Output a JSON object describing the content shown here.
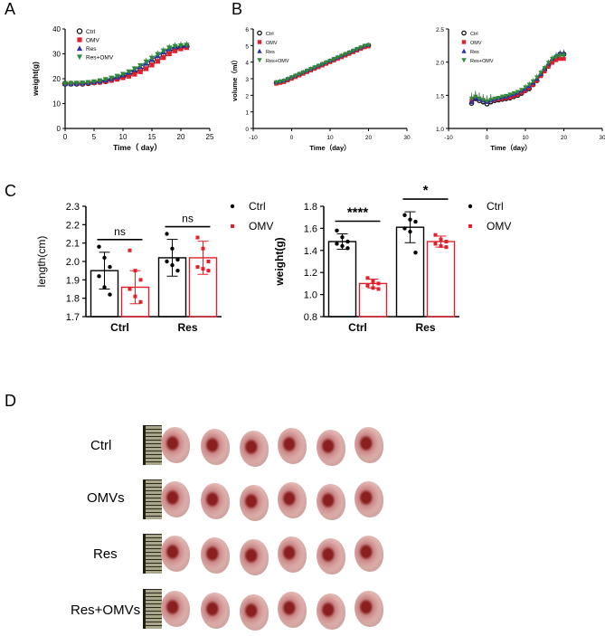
{
  "panels": {
    "A": "A",
    "B": "B",
    "C": "C",
    "D": "D"
  },
  "chart_data": [
    {
      "panel": "A",
      "type": "line",
      "xlabel": "Time（ day）",
      "ylabel": "weight(g)",
      "xlim": [
        0,
        25
      ],
      "ylim": [
        0,
        40
      ],
      "xticks": [
        "0",
        "5",
        "10",
        "15",
        "20",
        "25"
      ],
      "yticks": [
        "0",
        "10",
        "20",
        "30",
        "40"
      ],
      "legend_position": "top-left",
      "colors": {
        "Ctrl": "#000000",
        "OMV": "#e0202a",
        "Res": "#2a2fa8",
        "Res+OMV": "#2f8a3c"
      },
      "x": [
        0,
        1,
        2,
        3,
        4,
        5,
        6,
        7,
        8,
        9,
        10,
        11,
        12,
        13,
        14,
        15,
        16,
        17,
        18,
        19,
        20,
        21
      ],
      "series": [
        {
          "name": "Ctrl",
          "marker": "circle-open",
          "values": [
            18,
            18,
            18,
            18,
            18.2,
            18.5,
            18.7,
            19,
            19.5,
            20,
            20.8,
            21.5,
            22.5,
            23.5,
            25,
            26.5,
            28,
            29.5,
            31,
            32,
            32.5,
            33
          ]
        },
        {
          "name": "OMV",
          "marker": "square",
          "values": [
            18,
            18,
            18,
            18,
            18.2,
            18.4,
            18.6,
            18.9,
            19.3,
            19.8,
            20.4,
            21,
            21.8,
            22.8,
            24,
            25.5,
            27,
            28.5,
            30,
            31.2,
            32,
            32.5
          ]
        },
        {
          "name": "Res",
          "marker": "triangle-up",
          "values": [
            18,
            18,
            18.1,
            18.2,
            18.4,
            18.7,
            19,
            19.4,
            20,
            20.7,
            21.5,
            22.5,
            23.6,
            24.8,
            26.2,
            27.7,
            29.2,
            30.7,
            32,
            32.8,
            33.2,
            33.4
          ]
        },
        {
          "name": "Res+OMV",
          "marker": "triangle-down",
          "values": [
            18,
            18.1,
            18.2,
            18.3,
            18.5,
            18.8,
            19.2,
            19.7,
            20.3,
            21,
            21.8,
            22.8,
            24,
            25.3,
            26.8,
            28.3,
            29.8,
            31.2,
            32.4,
            33,
            33.3,
            33.5
          ]
        }
      ]
    },
    {
      "panel": "B-left",
      "type": "line",
      "xlabel": "Time（day）",
      "ylabel": "volume（ml）",
      "xlim": [
        -10,
        30
      ],
      "ylim": [
        0,
        6
      ],
      "xticks": [
        "-10",
        "0",
        "10",
        "20",
        "30"
      ],
      "yticks": [
        "0",
        "1",
        "2",
        "3",
        "4",
        "5",
        "6"
      ],
      "legend_position": "top-left",
      "x": [
        -4,
        -3,
        -2,
        -1,
        0,
        1,
        2,
        3,
        4,
        5,
        6,
        7,
        8,
        9,
        10,
        11,
        12,
        13,
        14,
        15,
        16,
        17,
        18,
        19,
        20
      ],
      "series": [
        {
          "name": "Ctrl",
          "marker": "circle-open",
          "values": [
            2.75,
            2.8,
            2.85,
            2.95,
            3.05,
            3.15,
            3.25,
            3.35,
            3.45,
            3.55,
            3.65,
            3.75,
            3.85,
            3.95,
            4.05,
            4.15,
            4.25,
            4.35,
            4.45,
            4.55,
            4.65,
            4.75,
            4.85,
            4.95,
            5.0
          ]
        },
        {
          "name": "OMV",
          "marker": "square",
          "values": [
            2.7,
            2.75,
            2.8,
            2.9,
            3.0,
            3.1,
            3.2,
            3.3,
            3.4,
            3.5,
            3.6,
            3.7,
            3.8,
            3.9,
            4.0,
            4.1,
            4.2,
            4.3,
            4.4,
            4.5,
            4.6,
            4.7,
            4.8,
            4.9,
            4.95
          ]
        },
        {
          "name": "Res",
          "marker": "triangle-up",
          "values": [
            2.8,
            2.85,
            2.9,
            3.0,
            3.1,
            3.2,
            3.3,
            3.4,
            3.5,
            3.6,
            3.7,
            3.8,
            3.9,
            4.0,
            4.1,
            4.2,
            4.3,
            4.4,
            4.5,
            4.6,
            4.7,
            4.8,
            4.9,
            5.0,
            5.05
          ]
        },
        {
          "name": "Res+OMV",
          "marker": "triangle-down",
          "values": [
            2.78,
            2.82,
            2.88,
            2.98,
            3.08,
            3.18,
            3.28,
            3.38,
            3.48,
            3.58,
            3.68,
            3.78,
            3.88,
            3.98,
            4.08,
            4.18,
            4.28,
            4.38,
            4.48,
            4.58,
            4.68,
            4.78,
            4.88,
            4.98,
            5.02
          ]
        }
      ]
    },
    {
      "panel": "B-right",
      "type": "line",
      "xlabel": "Time（day）",
      "ylabel": "",
      "xlim": [
        -10,
        30
      ],
      "ylim": [
        1.0,
        2.5
      ],
      "xticks": [
        "-10",
        "0",
        "10",
        "20",
        "30"
      ],
      "yticks": [
        "1.0",
        "1.5",
        "2.0",
        "2.5"
      ],
      "legend_position": "top-left",
      "x": [
        -4,
        -3,
        -2,
        -1,
        0,
        1,
        2,
        3,
        4,
        5,
        6,
        7,
        8,
        9,
        10,
        11,
        12,
        13,
        14,
        15,
        16,
        17,
        18,
        19,
        20
      ],
      "series": [
        {
          "name": "Ctrl",
          "marker": "circle-open",
          "values": [
            1.38,
            1.45,
            1.42,
            1.4,
            1.37,
            1.4,
            1.42,
            1.43,
            1.44,
            1.45,
            1.46,
            1.48,
            1.5,
            1.53,
            1.57,
            1.6,
            1.66,
            1.72,
            1.8,
            1.88,
            1.95,
            2.02,
            2.08,
            2.12,
            2.12
          ]
        },
        {
          "name": "OMV",
          "marker": "square",
          "values": [
            1.42,
            1.47,
            1.45,
            1.42,
            1.4,
            1.42,
            1.43,
            1.44,
            1.45,
            1.46,
            1.47,
            1.49,
            1.51,
            1.54,
            1.57,
            1.61,
            1.66,
            1.72,
            1.79,
            1.86,
            1.93,
            1.99,
            2.03,
            2.05,
            2.05
          ]
        },
        {
          "name": "Res",
          "marker": "triangle-up",
          "values": [
            1.4,
            1.46,
            1.44,
            1.42,
            1.4,
            1.42,
            1.44,
            1.46,
            1.47,
            1.48,
            1.5,
            1.52,
            1.54,
            1.57,
            1.6,
            1.64,
            1.69,
            1.75,
            1.82,
            1.9,
            1.98,
            2.05,
            2.1,
            2.13,
            2.14
          ]
        },
        {
          "name": "Res+OMV",
          "marker": "triangle-down",
          "values": [
            1.45,
            1.48,
            1.45,
            1.43,
            1.41,
            1.43,
            1.45,
            1.46,
            1.48,
            1.49,
            1.51,
            1.53,
            1.55,
            1.58,
            1.62,
            1.66,
            1.71,
            1.77,
            1.84,
            1.91,
            1.99,
            2.05,
            2.08,
            2.1,
            2.1
          ]
        }
      ]
    },
    {
      "panel": "C-left",
      "type": "bar",
      "ylabel": "length(cm)",
      "ylim": [
        1.7,
        2.3
      ],
      "yticks": [
        "1.7",
        "1.8",
        "1.9",
        "2.0",
        "2.1",
        "2.2",
        "2.3"
      ],
      "categories": [
        "Ctrl",
        "Res"
      ],
      "legend": [
        "Ctrl",
        "OMV"
      ],
      "legend_position": "top-right",
      "series": [
        {
          "name": "Ctrl",
          "color": "#000000",
          "values": [
            1.95,
            2.02
          ],
          "sd": [
            0.1,
            0.1
          ],
          "points": [
            [
              2.08,
              2.02,
              1.97,
              1.92,
              1.86,
              1.82
            ],
            [
              2.15,
              2.07,
              2.01,
              2.0,
              1.98,
              1.95
            ]
          ]
        },
        {
          "name": "OMV",
          "color": "#e0202a",
          "values": [
            1.86,
            2.02
          ],
          "sd": [
            0.09,
            0.09
          ],
          "points": [
            [
              2.06,
              1.95,
              1.9,
              1.85,
              1.81,
              1.78
            ],
            [
              2.13,
              2.07,
              2.0,
              1.97,
              1.96,
              1.95
            ]
          ]
        }
      ],
      "annotations": [
        "ns",
        "ns"
      ]
    },
    {
      "panel": "C-right",
      "type": "bar",
      "ylabel": "weight(g)",
      "ylim": [
        0.8,
        1.8
      ],
      "yticks": [
        "0.8",
        "1.0",
        "1.2",
        "1.4",
        "1.6",
        "1.8"
      ],
      "categories": [
        "Ctrl",
        "Res"
      ],
      "legend": [
        "Ctrl",
        "OMV"
      ],
      "legend_position": "top-right",
      "series": [
        {
          "name": "Ctrl",
          "color": "#000000",
          "values": [
            1.48,
            1.61
          ],
          "sd": [
            0.07,
            0.14
          ],
          "points": [
            [
              1.58,
              1.52,
              1.48,
              1.46,
              1.44,
              1.42
            ],
            [
              1.72,
              1.68,
              1.66,
              1.6,
              1.57,
              1.38
            ]
          ]
        },
        {
          "name": "OMV",
          "color": "#e0202a",
          "values": [
            1.1,
            1.48
          ],
          "sd": [
            0.04,
            0.05
          ],
          "points": [
            [
              1.15,
              1.12,
              1.1,
              1.08,
              1.06,
              1.05
            ],
            [
              1.54,
              1.5,
              1.48,
              1.46,
              1.44,
              1.43
            ]
          ]
        }
      ],
      "annotations": [
        "****",
        "*"
      ]
    }
  ],
  "photo": {
    "rows": [
      {
        "label": "Ctrl",
        "count": 6
      },
      {
        "label": "OMVs",
        "count": 6
      },
      {
        "label": "Res",
        "count": 6
      },
      {
        "label": "Res+OMVs",
        "count": 6
      }
    ]
  }
}
